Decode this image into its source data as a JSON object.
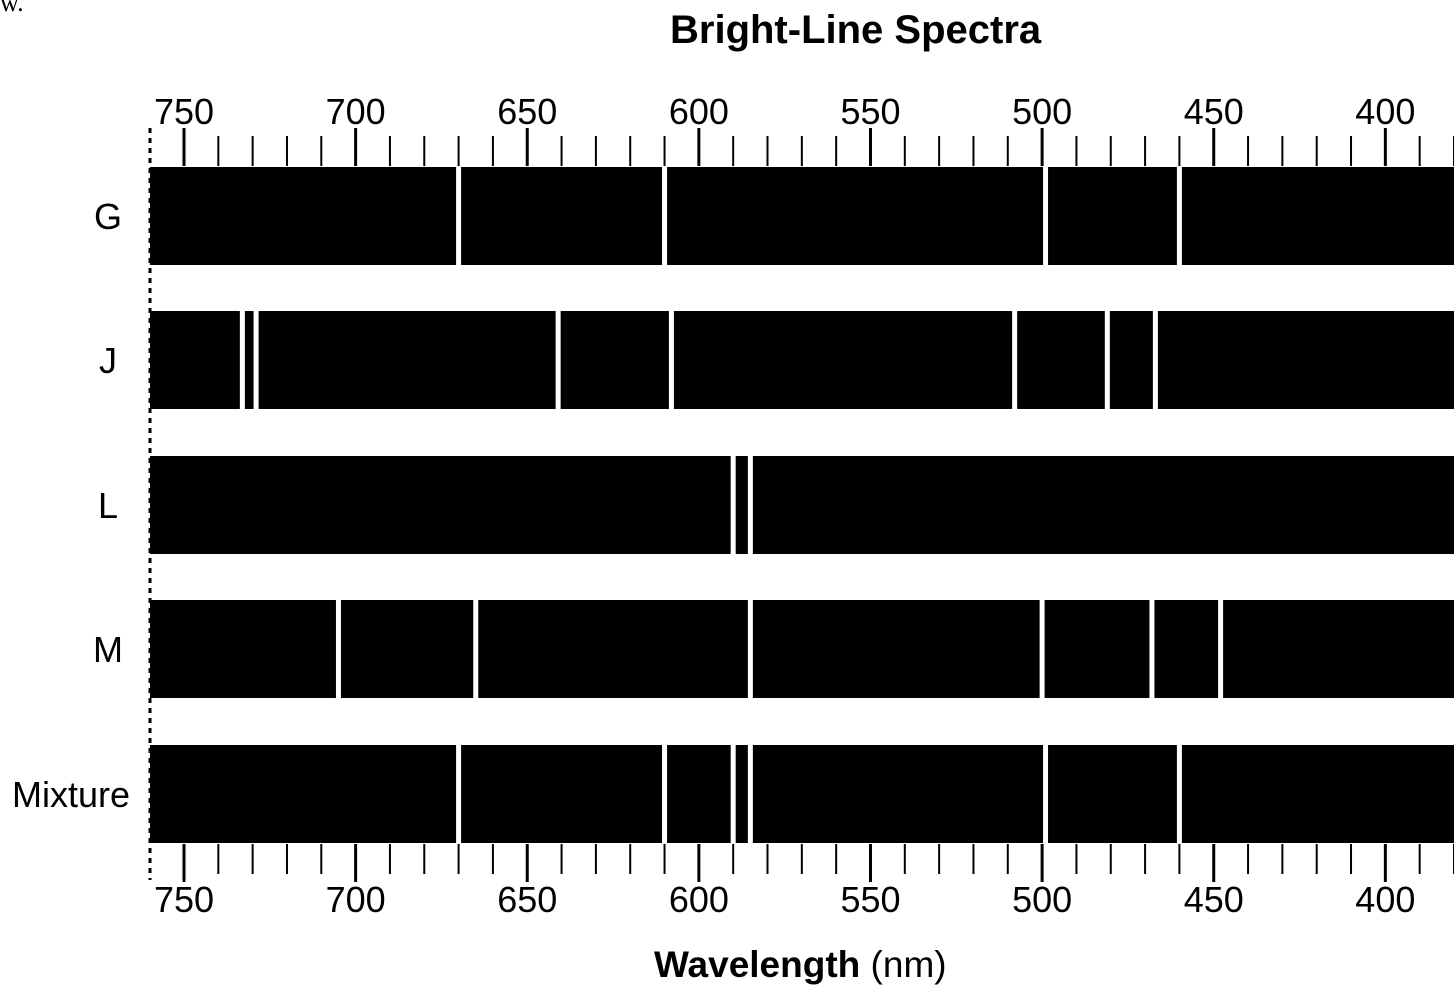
{
  "fragment_text": "w.",
  "chart_data": {
    "type": "spectra",
    "title": "Bright-Line Spectra",
    "xlabel_bold": "Wavelength",
    "xlabel_unit": "(nm)",
    "xlim": [
      760,
      380
    ],
    "major_ticks": [
      750,
      700,
      650,
      600,
      550,
      500,
      450,
      400
    ],
    "minor_tick_step": 10,
    "tick_labels": [
      "750",
      "700",
      "650",
      "600",
      "550",
      "500",
      "450",
      "400"
    ],
    "background_color": "#000000",
    "line_color": "#ffffff",
    "series": [
      {
        "name": "G",
        "lines_nm": [
          670,
          610,
          499,
          460
        ]
      },
      {
        "name": "J",
        "lines_nm": [
          733,
          729,
          641,
          608,
          508,
          481,
          467
        ]
      },
      {
        "name": "L",
        "lines_nm": [
          590,
          585
        ]
      },
      {
        "name": "M",
        "lines_nm": [
          705,
          665,
          585,
          500,
          468,
          448
        ]
      },
      {
        "name": "Mixture",
        "lines_nm": [
          670,
          610,
          590,
          585,
          499,
          460
        ]
      }
    ]
  }
}
